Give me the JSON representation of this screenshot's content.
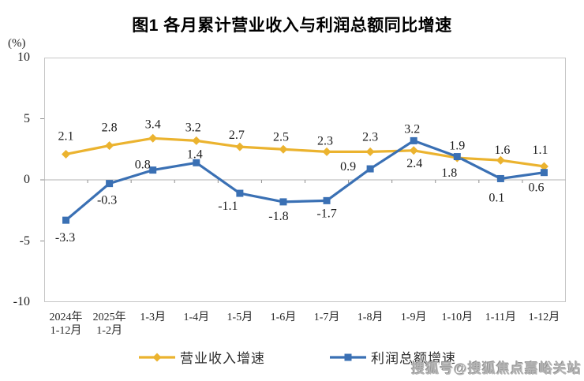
{
  "title": "图1  各月累计营业收入与利润总额同比增速",
  "watermark": "搜狐号@搜狐焦点嘉峪关站",
  "chart_data": {
    "type": "line",
    "title": "图1  各月累计营业收入与利润总额同比增速",
    "y_unit": "(%)",
    "ylim": [
      -10,
      10
    ],
    "yticks": [
      10,
      5,
      0,
      -5,
      -10
    ],
    "grid": "zero-line-only",
    "legend_position": "bottom",
    "categories": [
      "2024年\n1-12月",
      "2025年\n1-2月",
      "1-3月",
      "1-4月",
      "1-5月",
      "1-6月",
      "1-7月",
      "1-8月",
      "1-9月",
      "1-10月",
      "1-11月",
      "1-12月"
    ],
    "series": [
      {
        "name": "营业收入增速",
        "color": "#EBB32F",
        "marker": "diamond",
        "values": [
          2.1,
          2.8,
          3.4,
          3.2,
          2.7,
          2.5,
          2.3,
          2.3,
          2.4,
          1.8,
          1.6,
          1.1
        ],
        "label_offsets": [
          [
            0,
            -18
          ],
          [
            0,
            -18
          ],
          [
            0,
            -13
          ],
          [
            -4,
            -12
          ],
          [
            -4,
            -10
          ],
          [
            -3,
            -11
          ],
          [
            -2,
            -9
          ],
          [
            0,
            -14
          ],
          [
            1,
            21
          ],
          [
            -10,
            24
          ],
          [
            2,
            -8
          ],
          [
            -5,
            -16
          ]
        ]
      },
      {
        "name": "利润总额增速",
        "color": "#3A70B4",
        "marker": "square",
        "values": [
          -3.3,
          -0.3,
          0.8,
          1.4,
          -1.1,
          -1.8,
          -1.7,
          0.9,
          3.2,
          1.9,
          0.1,
          0.6
        ],
        "label_offsets": [
          [
            -1,
            27
          ],
          [
            -3,
            26
          ],
          [
            -13,
            -2
          ],
          [
            -2,
            -6
          ],
          [
            -15,
            21
          ],
          [
            -6,
            23
          ],
          [
            0,
            21
          ],
          [
            -28,
            2
          ],
          [
            -2,
            -10
          ],
          [
            0,
            -9
          ],
          [
            -5,
            29
          ],
          [
            -10,
            24
          ]
        ]
      }
    ]
  }
}
